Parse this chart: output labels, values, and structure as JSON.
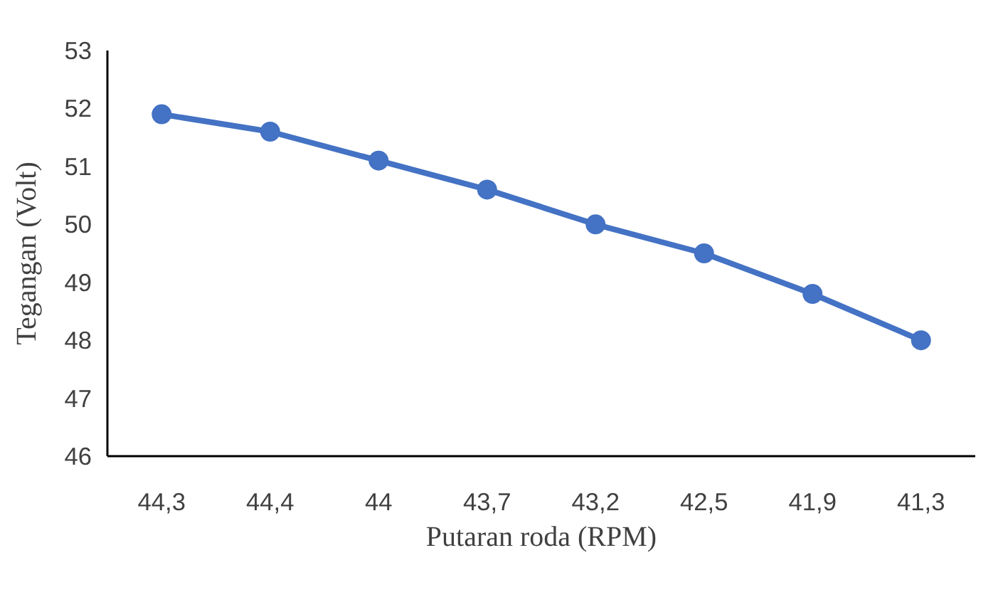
{
  "chart_data": {
    "type": "line",
    "xlabel": "Putaran roda (RPM)",
    "ylabel": "Tegangan (Volt)",
    "categories": [
      "44,3",
      "44,4",
      "44",
      "43,7",
      "43,2",
      "42,5",
      "41,9",
      "41,3"
    ],
    "series": [
      {
        "color": "#4472c4",
        "values": [
          51.9,
          51.6,
          51.1,
          50.6,
          50.0,
          49.5,
          48.8,
          48.0
        ]
      }
    ],
    "ylim": [
      46,
      53
    ],
    "yticks": [
      46,
      47,
      48,
      49,
      50,
      51,
      52,
      53
    ],
    "grid": false,
    "marker": "circle",
    "line_style": "solid"
  }
}
